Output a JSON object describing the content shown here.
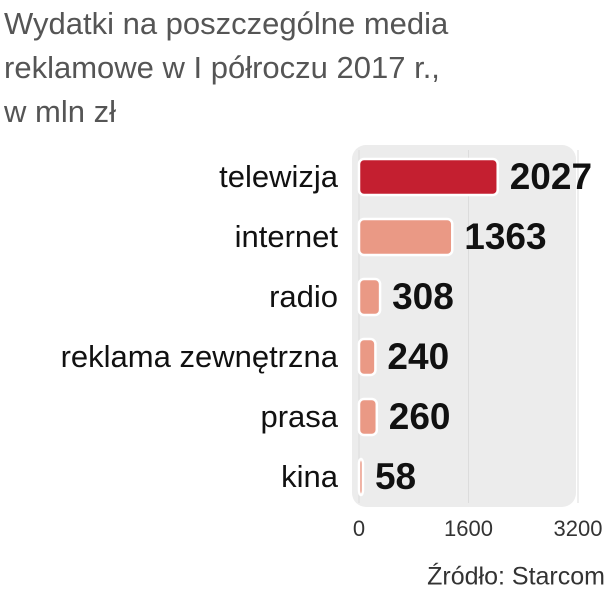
{
  "chart_data": {
    "type": "bar",
    "orientation": "horizontal",
    "title": "Wydatki na poszczególne media\nreklamowe w I półroczu 2017 r.,\nw mln zł",
    "categories": [
      "telewizja",
      "internet",
      "radio",
      "reklama zewnętrzna",
      "prasa",
      "kina"
    ],
    "values": [
      2027,
      1363,
      308,
      240,
      260,
      58
    ],
    "colors": [
      "#c41f30",
      "#ea9985",
      "#ea9985",
      "#ea9985",
      "#ea9985",
      "#ea9985"
    ],
    "xlim": [
      0,
      3200
    ],
    "xticks": [
      0,
      1600,
      3200
    ],
    "grid": true,
    "source": "Źródło: Starcom"
  }
}
